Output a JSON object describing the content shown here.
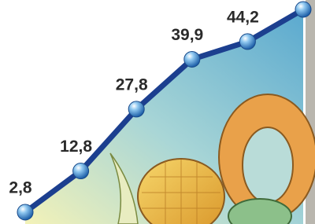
{
  "chart_data": {
    "type": "line",
    "values": [
      2.8,
      12.8,
      27.8,
      39.9,
      44.2,
      52
    ],
    "value_labels": [
      "2,8",
      "12,8",
      "27,8",
      "39,9",
      "44,2",
      null
    ],
    "color": "#1c3f8f"
  }
}
